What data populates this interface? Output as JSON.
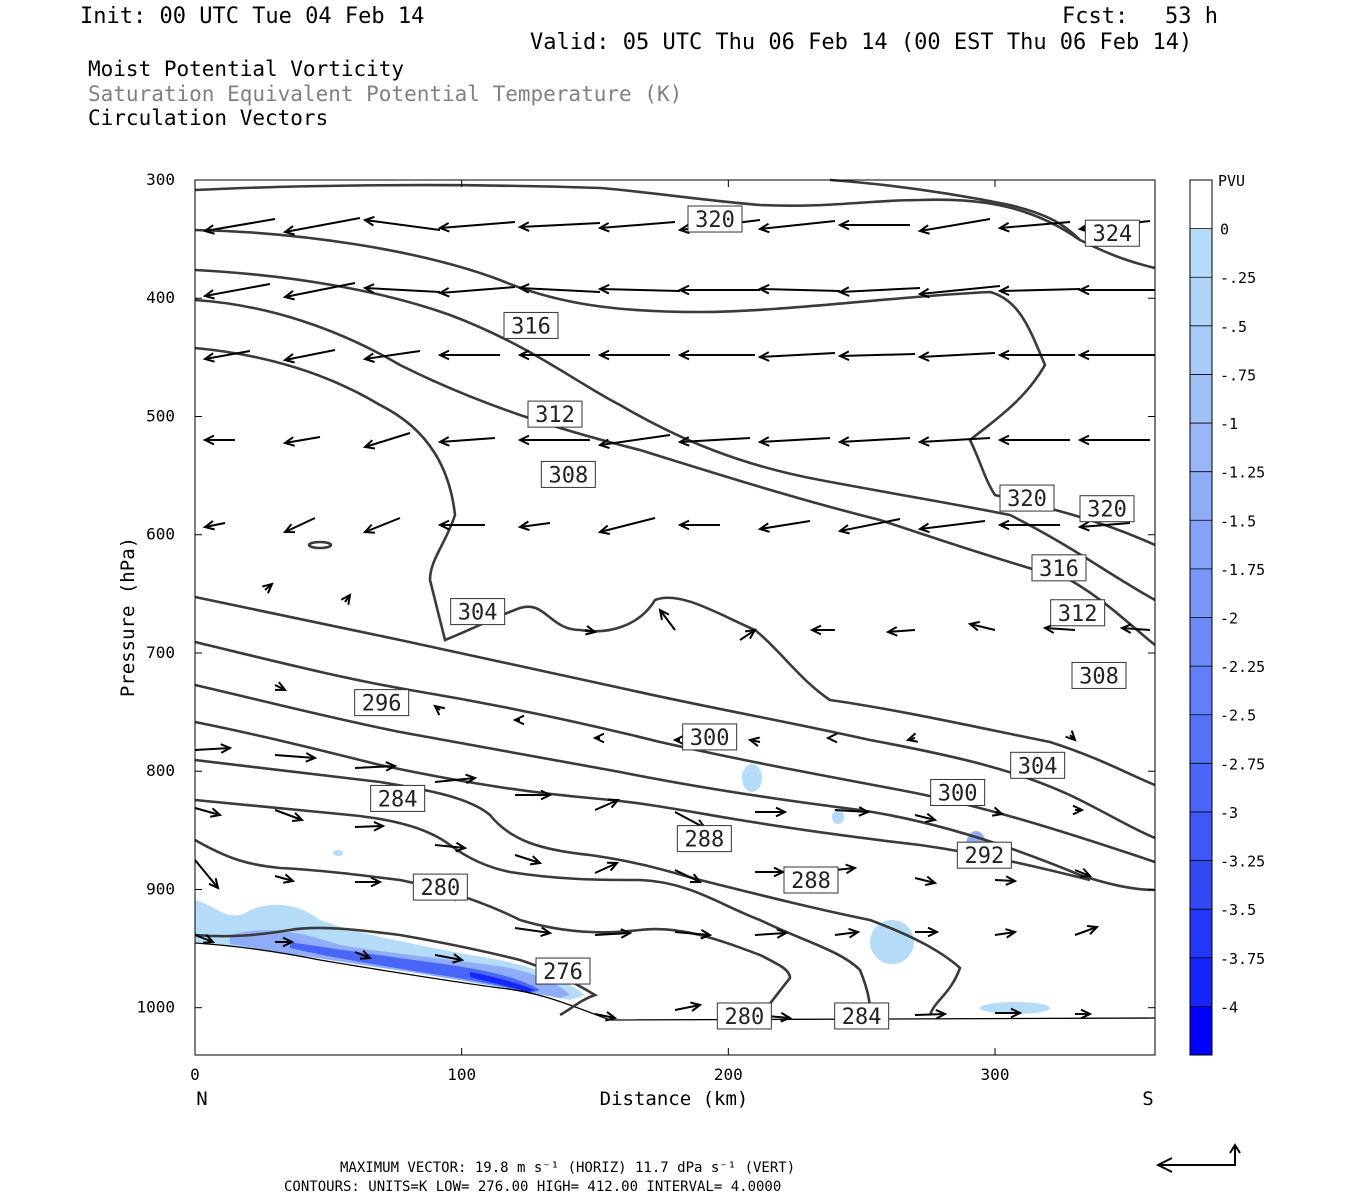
{
  "header": {
    "init": "Init: 00 UTC Tue 04 Feb 14",
    "fcst_label": "Fcst:",
    "fcst_value": "53 h",
    "valid": "Valid: 05 UTC Thu 06 Feb 14 (00 EST Thu 06 Feb 14)"
  },
  "legend_lines": {
    "line1": "Moist Potential Vorticity",
    "line2": "Saturation Equivalent Potential Temperature (K)",
    "line3": "Circulation Vectors"
  },
  "colors": {
    "contour": "#3a3a3a",
    "vector": "#000000",
    "pv_light": "#b4dcf8",
    "pv_dark": "#0000ff"
  },
  "footer": {
    "max_vector": "MAXIMUM VECTOR:  19.8 m s⁻¹ (HORIZ)        11.7 dPa s⁻¹ (VERT)",
    "contours": "CONTOURS:  UNITS=K  LOW=  276.00       HIGH=  412.00       INTERVAL=    4.0000"
  },
  "chart_data": {
    "type": "cross-section",
    "xlabel": "Distance (km)",
    "ylabel": "Pressure (hPa)",
    "xlim": [
      0,
      360
    ],
    "ylim": [
      1040,
      300
    ],
    "x_ticks": [
      "0",
      "100",
      "200",
      "300"
    ],
    "x_tick_values": [
      0,
      100,
      200,
      300
    ],
    "y_ticks": [
      "300",
      "400",
      "500",
      "600",
      "700",
      "800",
      "900",
      "1000"
    ],
    "y_tick_values": [
      300,
      400,
      500,
      600,
      700,
      800,
      900,
      1000
    ],
    "x_end_labels": {
      "left": "N",
      "right": "S"
    },
    "colorbar": {
      "title": "PVU",
      "labels": [
        "0",
        "-.25",
        "-.5",
        "-.75",
        "-1",
        "-1.25",
        "-1.5",
        "-1.75",
        "-2",
        "-2.25",
        "-2.5",
        "-2.75",
        "-3",
        "-3.25",
        "-3.5",
        "-3.75",
        "-4"
      ],
      "colors": [
        "#ffffff",
        "#b4dcf8",
        "#b0d4f8",
        "#a8caf8",
        "#a0c0f8",
        "#98b6f8",
        "#8eacf8",
        "#84a2f8",
        "#7a96f8",
        "#6e8af8",
        "#627ef8",
        "#5672f8",
        "#4a66f8",
        "#3e58f8",
        "#304af8",
        "#2238f8",
        "#1426f8",
        "#0000ff"
      ]
    },
    "contour_labels": [
      {
        "text": "320",
        "x": 195,
        "p": 333
      },
      {
        "text": "324",
        "x": 344,
        "p": 345
      },
      {
        "text": "316",
        "x": 126,
        "p": 423
      },
      {
        "text": "312",
        "x": 135,
        "p": 498
      },
      {
        "text": "308",
        "x": 140,
        "p": 549
      },
      {
        "text": "320",
        "x": 312,
        "p": 569
      },
      {
        "text": "320",
        "x": 342,
        "p": 578
      },
      {
        "text": "316",
        "x": 324,
        "p": 628
      },
      {
        "text": "312",
        "x": 331,
        "p": 666
      },
      {
        "text": "304",
        "x": 106,
        "p": 665
      },
      {
        "text": "308",
        "x": 339,
        "p": 719
      },
      {
        "text": "296",
        "x": 70,
        "p": 742
      },
      {
        "text": "300",
        "x": 193,
        "p": 771
      },
      {
        "text": "304",
        "x": 316,
        "p": 795
      },
      {
        "text": "284",
        "x": 76,
        "p": 823
      },
      {
        "text": "300",
        "x": 286,
        "p": 818
      },
      {
        "text": "288",
        "x": 191,
        "p": 857
      },
      {
        "text": "292",
        "x": 296,
        "p": 871
      },
      {
        "text": "288",
        "x": 231,
        "p": 892
      },
      {
        "text": "280",
        "x": 92,
        "p": 898
      },
      {
        "text": "276",
        "x": 138,
        "p": 969
      },
      {
        "text": "280",
        "x": 206,
        "p": 1007
      },
      {
        "text": "284",
        "x": 250,
        "p": 1007
      }
    ]
  }
}
